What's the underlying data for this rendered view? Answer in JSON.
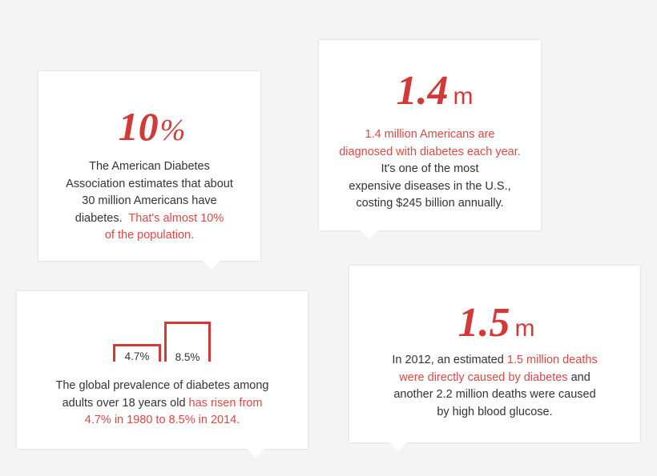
{
  "cards": [
    {
      "big_number": "10",
      "big_unit": "%",
      "lines": [
        {
          "text": "The American Diabetes",
          "highlight": false
        },
        {
          "text": "Association estimates that about",
          "highlight": false
        },
        {
          "text": "30 million Americans have",
          "highlight": false
        },
        {
          "pre": "diabetes.  ",
          "hl": "That's almost 10%"
        },
        {
          "text": "of the population.",
          "highlight": true
        }
      ]
    },
    {
      "big_number": "1.4",
      "big_unit": "m",
      "lines": [
        {
          "text": "1.4 million Americans are",
          "highlight": true
        },
        {
          "text": "diagnosed with diabetes each year.",
          "highlight": true
        },
        {
          "text": "It's one of the most",
          "highlight": false
        },
        {
          "text": "expensive diseases in the U.S.,",
          "highlight": false
        },
        {
          "text": "costing $245 billion annually.",
          "highlight": false
        }
      ]
    },
    {
      "bars": [
        {
          "label": "4.7%",
          "value": 4.7
        },
        {
          "label": "8.5%",
          "value": 8.5
        }
      ],
      "lines": [
        {
          "text": "The global prevalence of diabetes among",
          "highlight": false
        },
        {
          "pre": "adults over 18 years old ",
          "hl": "has risen from"
        },
        {
          "text": "4.7% in 1980 to 8.5% in 2014.",
          "highlight": true
        }
      ]
    },
    {
      "big_number": "1.5",
      "big_unit": "m",
      "lines": [
        {
          "pre": "In 2012, an estimated ",
          "hl": "1.5 million deaths"
        },
        {
          "hl": "were directly caused by diabetes",
          "post": " and"
        },
        {
          "text": "another 2.2 million deaths were caused",
          "highlight": false
        },
        {
          "text": "by high blood glucose.",
          "highlight": false
        }
      ]
    }
  ],
  "colors": {
    "accent": "#d23a3a",
    "highlight_text": "#d94a43",
    "body_text": "#333333",
    "background": "#f4f4f4",
    "card": "#ffffff"
  }
}
